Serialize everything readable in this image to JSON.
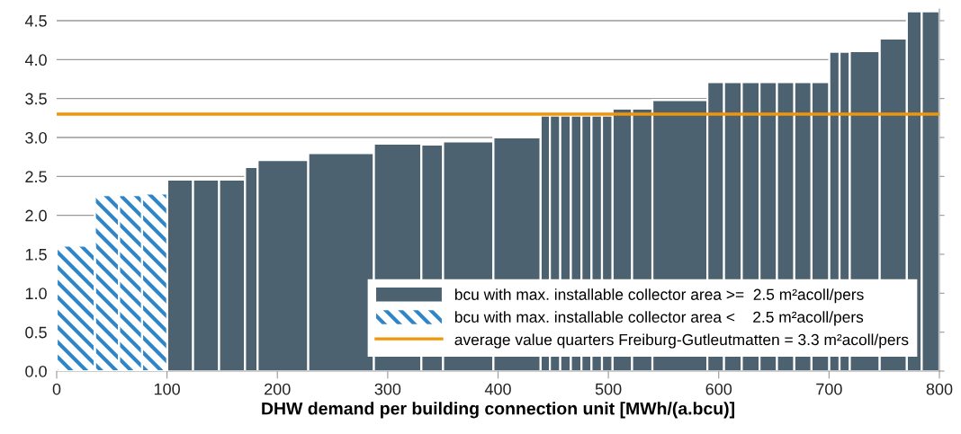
{
  "chart_data": {
    "type": "histogram",
    "xlabel": "DHW demand per building connection unit [MWh/(a.bcu)]",
    "bins": [
      0,
      34.6,
      56.4,
      77.4,
      100.2,
      123.6,
      147.2,
      170.7,
      182.1,
      228,
      287.5,
      330.5,
      350.2,
      395.8,
      438.6,
      447,
      456.4,
      466,
      475.6,
      484.7,
      494.2,
      503.8,
      521.5,
      539.9,
      589.7,
      604.8,
      620.9,
      637,
      652.8,
      668.5,
      684.1,
      700.2,
      709.5,
      718.8,
      745.9,
      770.5,
      784,
      800
    ],
    "series": [
      {
        "name": "bcu with max. installable collector area >=  2.5 m²acoll/pers",
        "color": "#4d6270",
        "values": [
          null,
          null,
          null,
          null,
          2.46,
          2.46,
          2.46,
          2.62,
          2.71,
          2.8,
          2.92,
          2.91,
          2.95,
          3.0,
          3.28,
          3.28,
          3.28,
          3.28,
          3.28,
          3.28,
          3.28,
          3.37,
          3.37,
          3.48,
          3.71,
          3.71,
          3.71,
          3.71,
          3.71,
          3.71,
          3.71,
          4.1,
          4.1,
          4.11,
          4.27,
          4.62,
          4.62
        ]
      },
      {
        "name": "bcu with max. installable collector area <    2.5 m²acoll/pers",
        "color": "#2e86c8",
        "values": [
          1.61,
          2.26,
          2.26,
          2.28,
          null,
          null,
          null,
          null,
          null,
          null,
          null,
          null,
          null,
          null,
          null,
          null,
          null,
          null,
          null,
          null,
          null,
          null,
          null,
          null,
          null,
          null,
          null,
          null,
          null,
          null,
          null,
          null,
          null,
          null,
          null,
          null,
          null
        ]
      }
    ],
    "ref_lines": [
      {
        "axis": "y",
        "value": 3.3,
        "label": "average value quarters Freiburg-Gutleutmatten = 3.3 m²acoll/pers",
        "color": "#f0960a"
      }
    ],
    "xlim": [
      0,
      800
    ],
    "xticks": [
      0,
      100,
      200,
      300,
      400,
      500,
      600,
      700,
      800
    ],
    "ylim": [
      0,
      4.65
    ],
    "yticks": [
      {
        "value": 0,
        "label": "0.0"
      },
      {
        "value": 0.5,
        "label": "0.5"
      },
      {
        "value": 1,
        "label": "1.0"
      },
      {
        "value": 1.5,
        "label": "1.5"
      },
      {
        "value": 2,
        "label": "2.0"
      },
      {
        "value": 2.5,
        "label": "2.5"
      },
      {
        "value": 3,
        "label": "3.0"
      },
      {
        "value": 3.5,
        "label": "3.5"
      },
      {
        "value": 4,
        "label": "4.0"
      },
      {
        "value": 4.5,
        "label": "4.5"
      }
    ],
    "grid": "y",
    "legend": "bottom right"
  }
}
